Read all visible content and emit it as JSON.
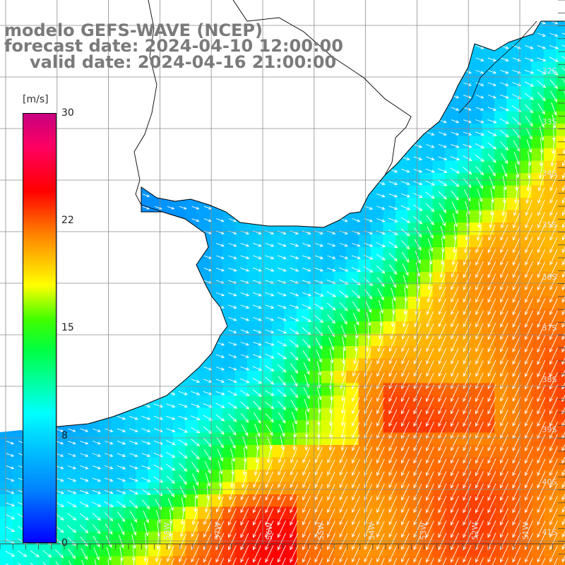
{
  "title": {
    "line1": "modelo GEFS-WAVE (NCEP)",
    "line2": "forecast date: 2024-04-10 12:00:00",
    "line3": "valid date: 2024-04-16 21:00:00"
  },
  "colorbar": {
    "units": "[m/s]",
    "ticks": [
      "30",
      "22",
      "15",
      "8",
      "0"
    ],
    "tick_values": [
      30,
      22,
      15,
      8,
      0
    ],
    "range": [
      0,
      30
    ]
  },
  "map": {
    "lat_labels": [
      "32S",
      "33S",
      "34S",
      "35S",
      "36S",
      "37S",
      "38S",
      "39S",
      "40S",
      "41S"
    ],
    "lon_labels": [
      "58W",
      "57W",
      "56W",
      "55W",
      "54W",
      "53W",
      "52W",
      "51W"
    ],
    "land_color": "#ffffff",
    "grid_color": "#8c8c8c",
    "arrow_color": "#ffffff"
  }
}
